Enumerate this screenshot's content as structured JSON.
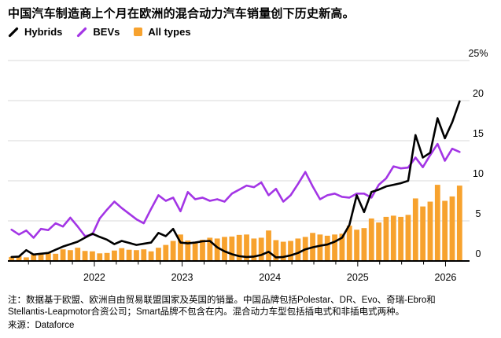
{
  "title": "中国汽车制造商上个月在欧洲的混合动力汽车销量创下历史新高。",
  "legend": {
    "items": [
      {
        "label": "Hybrids",
        "color": "#000000",
        "icon": "line-swatch"
      },
      {
        "label": "BEVs",
        "color": "#a335e5",
        "icon": "line-swatch"
      },
      {
        "label": "All types",
        "color": "#f7a22e",
        "icon": "square-swatch"
      }
    ]
  },
  "y_axis": {
    "unit": "%",
    "min": 0,
    "max": 25,
    "step": 5,
    "labels": [
      "25%",
      "20",
      "15",
      "10",
      "5",
      "0"
    ],
    "side": "right"
  },
  "x_axis": {
    "year_labels": [
      "2022",
      "2023",
      "2024",
      "2025",
      "2026"
    ],
    "minor_tick": "quarterly"
  },
  "notes": {
    "line1": "注：数据基于欧盟、欧洲自由贸易联盟国家及英国的销量。中国品牌包括Polestar、DR、Evo、奇瑞-Ebro和",
    "line2": "Stellantis-Leapmotor合资公司；Smart品牌不包含在内。混合动力车型包括插电式和非插电式两种。",
    "source": "来源：Dataforce"
  },
  "colors": {
    "hybrids": "#000000",
    "bevs": "#a335e5",
    "all_types": "#f7a22e",
    "gridline": "#d9d9d9",
    "axis": "#000000"
  },
  "chart_data": {
    "type": "mixed",
    "unit": "%",
    "ylim": [
      0,
      25
    ],
    "grid": "horizontal",
    "legend_position": "top-left",
    "months": [
      "2021-01",
      "2021-02",
      "2021-03",
      "2021-04",
      "2021-05",
      "2021-06",
      "2021-07",
      "2021-08",
      "2021-09",
      "2021-10",
      "2021-11",
      "2021-12",
      "2022-01",
      "2022-02",
      "2022-03",
      "2022-04",
      "2022-05",
      "2022-06",
      "2022-07",
      "2022-08",
      "2022-09",
      "2022-10",
      "2022-11",
      "2022-12",
      "2023-01",
      "2023-02",
      "2023-03",
      "2023-04",
      "2023-05",
      "2023-06",
      "2023-07",
      "2023-08",
      "2023-09",
      "2023-10",
      "2023-11",
      "2023-12",
      "2024-01",
      "2024-02",
      "2024-03",
      "2024-04",
      "2024-05",
      "2024-06",
      "2024-07",
      "2024-08",
      "2024-09",
      "2024-10",
      "2024-11",
      "2024-12",
      "2025-01",
      "2025-02",
      "2025-03",
      "2025-04",
      "2025-05",
      "2025-06",
      "2025-07",
      "2025-08",
      "2025-09",
      "2025-10",
      "2025-11",
      "2025-12",
      "2026-01",
      "2026-02"
    ],
    "series": [
      {
        "name": "All types",
        "type": "bar",
        "color": "#f7a22e",
        "values": [
          0.5,
          0.6,
          0.45,
          0.8,
          0.9,
          1.1,
          0.9,
          1.45,
          1.35,
          1.65,
          1.25,
          1.2,
          0.95,
          1.0,
          1.3,
          1.6,
          1.4,
          1.35,
          1.45,
          1.2,
          1.65,
          2.0,
          2.5,
          3.3,
          2.55,
          2.4,
          2.65,
          2.9,
          2.8,
          3.0,
          3.05,
          3.25,
          3.3,
          2.8,
          2.9,
          3.8,
          2.6,
          2.4,
          2.5,
          2.8,
          3.0,
          3.5,
          3.3,
          3.15,
          3.3,
          3.4,
          4.4,
          3.9,
          4.1,
          5.3,
          4.8,
          5.5,
          5.65,
          5.5,
          5.75,
          7.8,
          6.8,
          7.4,
          9.5,
          7.5,
          8.05,
          9.4
        ]
      },
      {
        "name": "BEVs",
        "type": "line",
        "color": "#a335e5",
        "values": [
          3.9,
          3.3,
          3.8,
          2.9,
          4.0,
          3.85,
          4.7,
          4.3,
          5.4,
          4.3,
          3.1,
          3.3,
          5.3,
          6.4,
          7.4,
          6.6,
          5.9,
          5.2,
          4.7,
          6.5,
          8.2,
          7.5,
          7.9,
          6.2,
          8.6,
          7.7,
          7.9,
          7.5,
          7.7,
          7.4,
          8.4,
          8.9,
          9.4,
          9.2,
          9.8,
          8.2,
          9.0,
          7.4,
          8.2,
          9.6,
          11.1,
          9.3,
          7.7,
          8.2,
          8.4,
          8.0,
          7.9,
          8.4,
          8.4,
          7.9,
          9.5,
          10.3,
          11.8,
          11.55,
          11.65,
          12.9,
          11.7,
          13.2,
          14.6,
          12.5,
          14.0,
          13.6
        ]
      },
      {
        "name": "Hybrids",
        "type": "line",
        "color": "#000000",
        "values": [
          0.5,
          0.55,
          1.35,
          0.8,
          0.9,
          1.0,
          1.4,
          1.8,
          2.1,
          2.4,
          2.9,
          3.4,
          3.0,
          2.65,
          2.1,
          2.5,
          2.25,
          2.0,
          2.15,
          2.3,
          3.5,
          3.1,
          4.0,
          2.3,
          2.2,
          2.3,
          2.45,
          2.5,
          1.7,
          1.2,
          0.85,
          0.6,
          0.5,
          0.55,
          0.75,
          1.15,
          0.45,
          0.5,
          0.7,
          1.0,
          1.45,
          1.7,
          1.9,
          2.05,
          2.4,
          2.9,
          4.5,
          8.2,
          6.1,
          8.6,
          8.9,
          9.3,
          9.5,
          9.7,
          10.0,
          15.7,
          12.9,
          13.5,
          17.8,
          15.3,
          17.3,
          19.9
        ]
      }
    ]
  }
}
